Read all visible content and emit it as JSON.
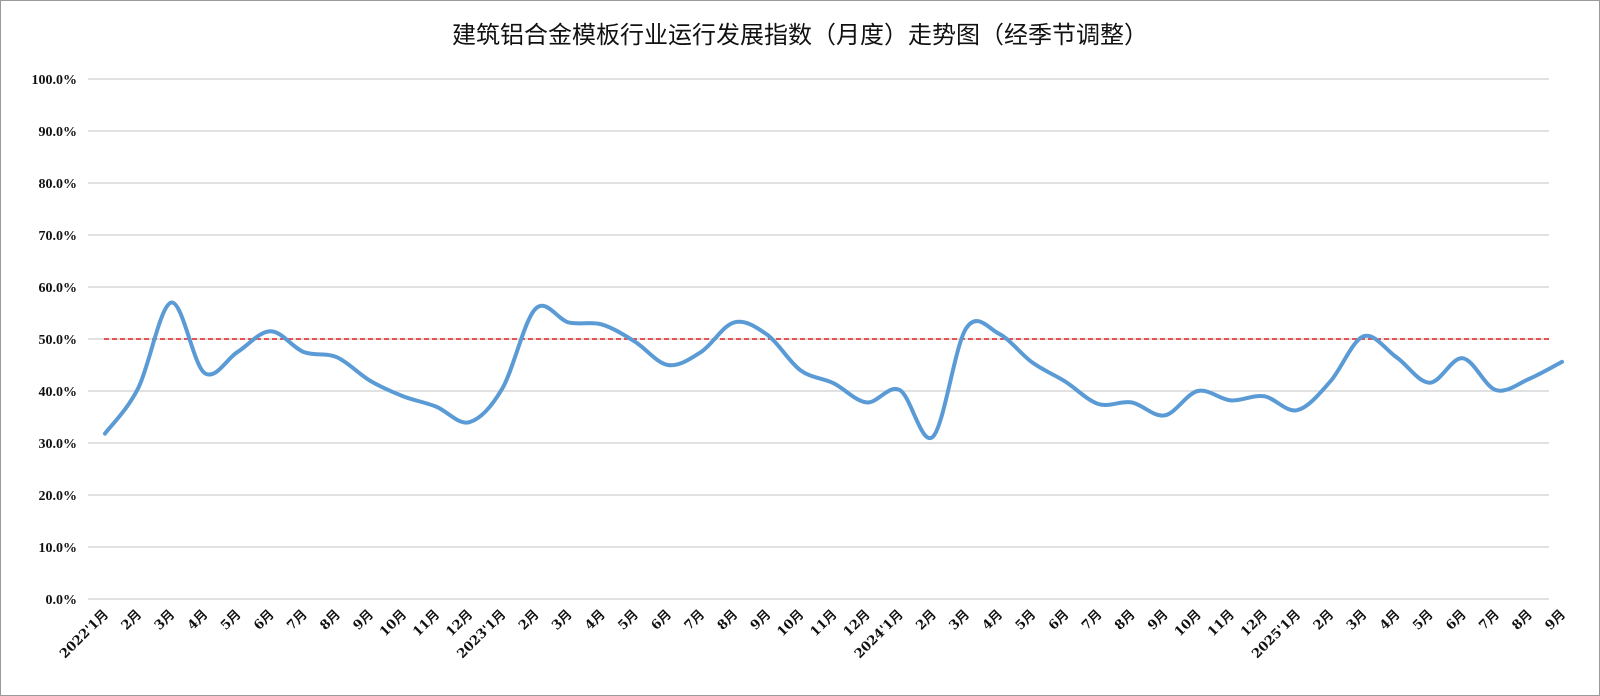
{
  "chart_data": {
    "type": "line",
    "title": "建筑铝合金模板行业运行发展指数（月度）走势图（经季节调整）",
    "xlabel": "",
    "ylabel": "",
    "ylim": [
      0,
      100
    ],
    "y_ticks": [
      "0.0%",
      "10.0%",
      "20.0%",
      "30.0%",
      "40.0%",
      "50.0%",
      "60.0%",
      "70.0%",
      "80.0%",
      "90.0%",
      "100.0%"
    ],
    "grid": true,
    "legend": "none",
    "categories": [
      "2022'1月",
      "2月",
      "3月",
      "4月",
      "5月",
      "6月",
      "7月",
      "8月",
      "9月",
      "10月",
      "11月",
      "12月",
      "2023'1月",
      "2月",
      "3月",
      "4月",
      "5月",
      "6月",
      "7月",
      "8月",
      "9月",
      "10月",
      "11月",
      "12月",
      "2024'1月",
      "2月",
      "3月",
      "4月",
      "5月",
      "6月",
      "7月",
      "8月",
      "9月",
      "10月",
      "11月",
      "12月",
      "2025'1月",
      "2月",
      "3月",
      "4月",
      "5月",
      "6月",
      "7月",
      "8月",
      "9月"
    ],
    "series": [
      {
        "color": "#5b9bd5",
        "values": [
          31.8,
          40.5,
          57.0,
          43.5,
          47.5,
          51.5,
          47.5,
          46.5,
          42.0,
          39.0,
          37.0,
          34.0,
          40.5,
          55.8,
          53.2,
          52.8,
          49.5,
          45.0,
          47.5,
          53.2,
          50.8,
          44.0,
          41.5,
          37.8,
          40.2,
          31.2,
          52.0,
          51.0,
          45.5,
          41.8,
          37.5,
          37.8,
          35.3,
          40.0,
          38.2,
          39.0,
          36.3,
          41.8,
          50.5,
          46.5,
          41.6,
          46.3,
          40.2,
          42.3,
          45.6
        ]
      }
    ],
    "reference_line": {
      "value": 50.0,
      "color": "#e02020",
      "style": "dashed"
    }
  }
}
